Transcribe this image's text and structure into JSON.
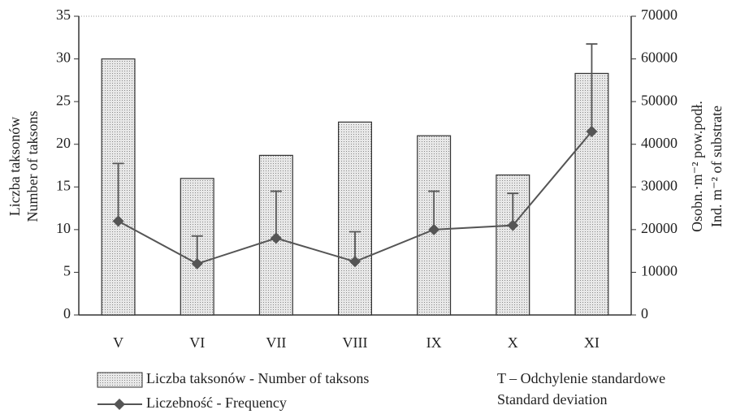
{
  "chart_data": {
    "type": "bar",
    "categories": [
      "V",
      "VI",
      "VII",
      "VIII",
      "IX",
      "X",
      "XI"
    ],
    "series": [
      {
        "name": "Liczba taksonów - Number of taksons",
        "color": "#dcdcdc",
        "values": [
          30,
          16,
          18.7,
          22.6,
          21,
          16.4,
          28.3
        ]
      },
      {
        "name": "Liczebność - Frequency",
        "color": "#555555",
        "axis": "y2",
        "type": "line",
        "values": [
          22000,
          12000,
          18000,
          12500,
          20000,
          21000,
          43000
        ],
        "errors": [
          13500,
          6500,
          11000,
          7000,
          9000,
          7500,
          20500
        ]
      }
    ],
    "ylabel": [
      "Liczba taksonów",
      "Number of taksons"
    ],
    "y2label": [
      "Osobn.·m⁻² pow.podł.",
      "Ind. m⁻² of substrate"
    ],
    "ylim": [
      0,
      35
    ],
    "yticks": [
      0,
      5,
      10,
      15,
      20,
      25,
      30,
      35
    ],
    "y2lim": [
      0,
      70000
    ],
    "y2ticks": [
      0,
      10000,
      20000,
      30000,
      40000,
      50000,
      60000,
      70000
    ],
    "annotation": [
      "T – Odchylenie standardowe",
      "Standard deviation"
    ]
  }
}
